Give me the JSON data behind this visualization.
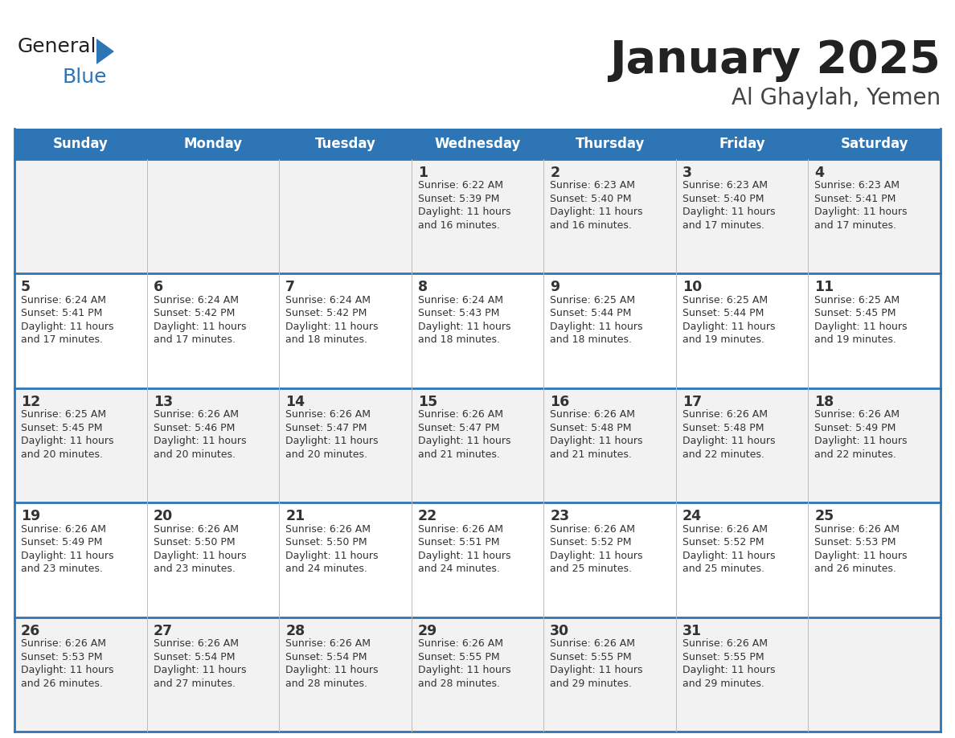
{
  "title": "January 2025",
  "subtitle": "Al Ghaylah, Yemen",
  "days_of_week": [
    "Sunday",
    "Monday",
    "Tuesday",
    "Wednesday",
    "Thursday",
    "Friday",
    "Saturday"
  ],
  "header_bg": "#2E75B6",
  "header_text": "#FFFFFF",
  "cell_bg_odd": "#F2F2F2",
  "cell_bg_even": "#FFFFFF",
  "cell_text": "#333333",
  "day_num_color": "#333333",
  "divider_color": "#2E75B6",
  "title_color": "#222222",
  "subtitle_color": "#444444",
  "logo_general_color": "#222222",
  "logo_blue_color": "#2E75B6",
  "calendar_data": [
    {
      "day": 1,
      "col": 3,
      "row": 0,
      "sunrise": "6:22 AM",
      "sunset": "5:39 PM",
      "daylight_hours": 11,
      "daylight_minutes": 16
    },
    {
      "day": 2,
      "col": 4,
      "row": 0,
      "sunrise": "6:23 AM",
      "sunset": "5:40 PM",
      "daylight_hours": 11,
      "daylight_minutes": 16
    },
    {
      "day": 3,
      "col": 5,
      "row": 0,
      "sunrise": "6:23 AM",
      "sunset": "5:40 PM",
      "daylight_hours": 11,
      "daylight_minutes": 17
    },
    {
      "day": 4,
      "col": 6,
      "row": 0,
      "sunrise": "6:23 AM",
      "sunset": "5:41 PM",
      "daylight_hours": 11,
      "daylight_minutes": 17
    },
    {
      "day": 5,
      "col": 0,
      "row": 1,
      "sunrise": "6:24 AM",
      "sunset": "5:41 PM",
      "daylight_hours": 11,
      "daylight_minutes": 17
    },
    {
      "day": 6,
      "col": 1,
      "row": 1,
      "sunrise": "6:24 AM",
      "sunset": "5:42 PM",
      "daylight_hours": 11,
      "daylight_minutes": 17
    },
    {
      "day": 7,
      "col": 2,
      "row": 1,
      "sunrise": "6:24 AM",
      "sunset": "5:42 PM",
      "daylight_hours": 11,
      "daylight_minutes": 18
    },
    {
      "day": 8,
      "col": 3,
      "row": 1,
      "sunrise": "6:24 AM",
      "sunset": "5:43 PM",
      "daylight_hours": 11,
      "daylight_minutes": 18
    },
    {
      "day": 9,
      "col": 4,
      "row": 1,
      "sunrise": "6:25 AM",
      "sunset": "5:44 PM",
      "daylight_hours": 11,
      "daylight_minutes": 18
    },
    {
      "day": 10,
      "col": 5,
      "row": 1,
      "sunrise": "6:25 AM",
      "sunset": "5:44 PM",
      "daylight_hours": 11,
      "daylight_minutes": 19
    },
    {
      "day": 11,
      "col": 6,
      "row": 1,
      "sunrise": "6:25 AM",
      "sunset": "5:45 PM",
      "daylight_hours": 11,
      "daylight_minutes": 19
    },
    {
      "day": 12,
      "col": 0,
      "row": 2,
      "sunrise": "6:25 AM",
      "sunset": "5:45 PM",
      "daylight_hours": 11,
      "daylight_minutes": 20
    },
    {
      "day": 13,
      "col": 1,
      "row": 2,
      "sunrise": "6:26 AM",
      "sunset": "5:46 PM",
      "daylight_hours": 11,
      "daylight_minutes": 20
    },
    {
      "day": 14,
      "col": 2,
      "row": 2,
      "sunrise": "6:26 AM",
      "sunset": "5:47 PM",
      "daylight_hours": 11,
      "daylight_minutes": 20
    },
    {
      "day": 15,
      "col": 3,
      "row": 2,
      "sunrise": "6:26 AM",
      "sunset": "5:47 PM",
      "daylight_hours": 11,
      "daylight_minutes": 21
    },
    {
      "day": 16,
      "col": 4,
      "row": 2,
      "sunrise": "6:26 AM",
      "sunset": "5:48 PM",
      "daylight_hours": 11,
      "daylight_minutes": 21
    },
    {
      "day": 17,
      "col": 5,
      "row": 2,
      "sunrise": "6:26 AM",
      "sunset": "5:48 PM",
      "daylight_hours": 11,
      "daylight_minutes": 22
    },
    {
      "day": 18,
      "col": 6,
      "row": 2,
      "sunrise": "6:26 AM",
      "sunset": "5:49 PM",
      "daylight_hours": 11,
      "daylight_minutes": 22
    },
    {
      "day": 19,
      "col": 0,
      "row": 3,
      "sunrise": "6:26 AM",
      "sunset": "5:49 PM",
      "daylight_hours": 11,
      "daylight_minutes": 23
    },
    {
      "day": 20,
      "col": 1,
      "row": 3,
      "sunrise": "6:26 AM",
      "sunset": "5:50 PM",
      "daylight_hours": 11,
      "daylight_minutes": 23
    },
    {
      "day": 21,
      "col": 2,
      "row": 3,
      "sunrise": "6:26 AM",
      "sunset": "5:50 PM",
      "daylight_hours": 11,
      "daylight_minutes": 24
    },
    {
      "day": 22,
      "col": 3,
      "row": 3,
      "sunrise": "6:26 AM",
      "sunset": "5:51 PM",
      "daylight_hours": 11,
      "daylight_minutes": 24
    },
    {
      "day": 23,
      "col": 4,
      "row": 3,
      "sunrise": "6:26 AM",
      "sunset": "5:52 PM",
      "daylight_hours": 11,
      "daylight_minutes": 25
    },
    {
      "day": 24,
      "col": 5,
      "row": 3,
      "sunrise": "6:26 AM",
      "sunset": "5:52 PM",
      "daylight_hours": 11,
      "daylight_minutes": 25
    },
    {
      "day": 25,
      "col": 6,
      "row": 3,
      "sunrise": "6:26 AM",
      "sunset": "5:53 PM",
      "daylight_hours": 11,
      "daylight_minutes": 26
    },
    {
      "day": 26,
      "col": 0,
      "row": 4,
      "sunrise": "6:26 AM",
      "sunset": "5:53 PM",
      "daylight_hours": 11,
      "daylight_minutes": 26
    },
    {
      "day": 27,
      "col": 1,
      "row": 4,
      "sunrise": "6:26 AM",
      "sunset": "5:54 PM",
      "daylight_hours": 11,
      "daylight_minutes": 27
    },
    {
      "day": 28,
      "col": 2,
      "row": 4,
      "sunrise": "6:26 AM",
      "sunset": "5:54 PM",
      "daylight_hours": 11,
      "daylight_minutes": 28
    },
    {
      "day": 29,
      "col": 3,
      "row": 4,
      "sunrise": "6:26 AM",
      "sunset": "5:55 PM",
      "daylight_hours": 11,
      "daylight_minutes": 28
    },
    {
      "day": 30,
      "col": 4,
      "row": 4,
      "sunrise": "6:26 AM",
      "sunset": "5:55 PM",
      "daylight_hours": 11,
      "daylight_minutes": 29
    },
    {
      "day": 31,
      "col": 5,
      "row": 4,
      "sunrise": "6:26 AM",
      "sunset": "5:55 PM",
      "daylight_hours": 11,
      "daylight_minutes": 29
    }
  ]
}
